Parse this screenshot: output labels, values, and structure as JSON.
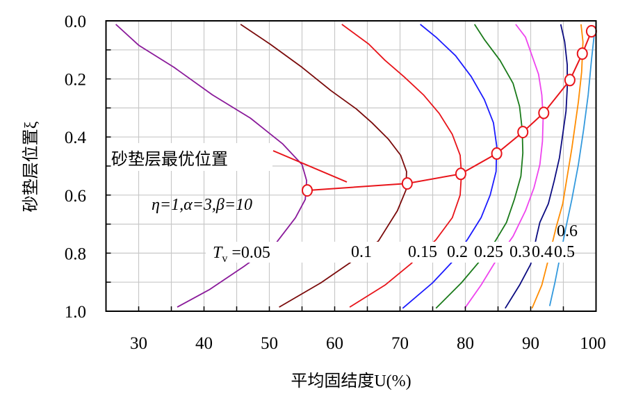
{
  "chart_data": {
    "type": "line",
    "xlabel": "平均固结度U(%)",
    "ylabel": "砂垫层位置ξ",
    "xlim": [
      25,
      100
    ],
    "ylim": [
      0,
      1.0
    ],
    "y_inverted": true,
    "grid": true,
    "x_ticks": [
      "30",
      "40",
      "50",
      "60",
      "70",
      "80",
      "90",
      "100"
    ],
    "x_tick_values": [
      30,
      40,
      50,
      60,
      70,
      80,
      90,
      100
    ],
    "y_ticks": [
      "0.0",
      "0.2",
      "0.4",
      "0.6",
      "0.8",
      "1.0"
    ],
    "y_tick_values": [
      0,
      0.2,
      0.4,
      0.6,
      0.8,
      1.0
    ],
    "annotation": "砂垫层最优位置",
    "params_label": "η=1,α=3,β=10",
    "tv_prefix": "T",
    "tv_sub": "v",
    "series": [
      {
        "name": "0.05",
        "label": "=0.05",
        "color": "#8a1a9a",
        "U": [
          26.5,
          30.0,
          35.4,
          41.3,
          47.1,
          52.0,
          55.0,
          55.7,
          55.5,
          54.0,
          51.0,
          46.1,
          40.8,
          35.9
        ],
        "xi": [
          0.012,
          0.084,
          0.16,
          0.255,
          0.335,
          0.423,
          0.495,
          0.55,
          0.615,
          0.678,
          0.766,
          0.846,
          0.926,
          0.986
        ]
      },
      {
        "name": "0.1",
        "label": "0.1",
        "color": "#7a0a0a",
        "U": [
          45.6,
          50.1,
          55.0,
          59.4,
          63.3,
          65.7,
          68.2,
          70.1,
          71.0,
          70.9,
          69.6,
          66.7,
          62.3,
          57.9,
          51.5
        ],
        "xi": [
          0.012,
          0.08,
          0.16,
          0.24,
          0.303,
          0.351,
          0.407,
          0.463,
          0.519,
          0.583,
          0.654,
          0.758,
          0.834,
          0.902,
          0.986
        ]
      },
      {
        "name": "0.15",
        "label": "0.15",
        "color": "#e8141a",
        "U": [
          61.1,
          65.2,
          67.7,
          70.6,
          73.6,
          76.0,
          78.0,
          79.2,
          79.4,
          79.2,
          78.0,
          75.5,
          71.6,
          67.7,
          62.3
        ],
        "xi": [
          0.012,
          0.08,
          0.136,
          0.192,
          0.255,
          0.319,
          0.391,
          0.463,
          0.527,
          0.6,
          0.678,
          0.754,
          0.838,
          0.91,
          0.986
        ]
      },
      {
        "name": "0.2",
        "label": "0.2",
        "color": "#1a1aff",
        "U": [
          73.1,
          75.5,
          78.5,
          80.9,
          82.9,
          84.3,
          84.8,
          84.7,
          83.8,
          82.4,
          80.4,
          78.0,
          75.0,
          70.4
        ],
        "xi": [
          0.012,
          0.056,
          0.12,
          0.192,
          0.271,
          0.351,
          0.431,
          0.519,
          0.6,
          0.678,
          0.75,
          0.83,
          0.902,
          0.99
        ]
      },
      {
        "name": "0.25",
        "label": "0.25",
        "color": "#1a7a1a",
        "U": [
          81.4,
          82.9,
          85.3,
          87.3,
          88.3,
          88.7,
          88.8,
          88.5,
          87.5,
          86.3,
          84.6,
          82.4,
          79.4,
          75.5
        ],
        "xi": [
          0.012,
          0.064,
          0.136,
          0.215,
          0.295,
          0.375,
          0.455,
          0.535,
          0.615,
          0.694,
          0.758,
          0.822,
          0.902,
          0.99
        ]
      },
      {
        "name": "0.3",
        "label": "0.3",
        "color": "#ee44ee",
        "U": [
          87.7,
          89.2,
          90.2,
          91.2,
          91.7,
          91.9,
          91.8,
          91.4,
          90.5,
          89.2,
          87.3,
          84.8,
          82.4,
          79.9
        ],
        "xi": [
          0.012,
          0.056,
          0.12,
          0.184,
          0.255,
          0.335,
          0.415,
          0.495,
          0.575,
          0.654,
          0.742,
          0.822,
          0.91,
          0.99
        ]
      },
      {
        "name": "0.4",
        "label": "0.4",
        "color": "#0a0a80",
        "U": [
          94.6,
          95.2,
          95.6,
          95.6,
          95.4,
          94.9,
          94.4,
          93.6,
          92.7,
          91.4,
          90.9,
          90.0,
          88.3,
          86.1
        ],
        "xi": [
          0.012,
          0.072,
          0.152,
          0.231,
          0.311,
          0.391,
          0.471,
          0.551,
          0.63,
          0.694,
          0.742,
          0.838,
          0.91,
          0.99
        ]
      },
      {
        "name": "0.5",
        "label": "0.5",
        "color": "#ff8c00",
        "U": [
          97.7,
          98.0,
          97.8,
          97.3,
          96.8,
          96.3,
          95.6,
          94.9,
          93.9,
          92.7,
          91.7,
          90.2
        ],
        "xi": [
          0.012,
          0.072,
          0.176,
          0.279,
          0.359,
          0.439,
          0.535,
          0.63,
          0.71,
          0.822,
          0.91,
          0.99
        ]
      },
      {
        "name": "0.6",
        "label": "0.6",
        "color": "#3399dd",
        "U": [
          99.8,
          99.3,
          98.8,
          98.1,
          97.3,
          96.3,
          95.4,
          94.4,
          93.7,
          92.9
        ],
        "xi": [
          0.032,
          0.136,
          0.255,
          0.375,
          0.495,
          0.615,
          0.71,
          0.822,
          0.902,
          0.982
        ]
      }
    ],
    "optimal": {
      "color": "#e8141a",
      "U": [
        55.8,
        71.1,
        79.3,
        84.8,
        88.8,
        92.0,
        96.0,
        97.9,
        99.3
      ],
      "xi": [
        0.584,
        0.56,
        0.527,
        0.457,
        0.383,
        0.317,
        0.204,
        0.113,
        0.036
      ]
    }
  }
}
